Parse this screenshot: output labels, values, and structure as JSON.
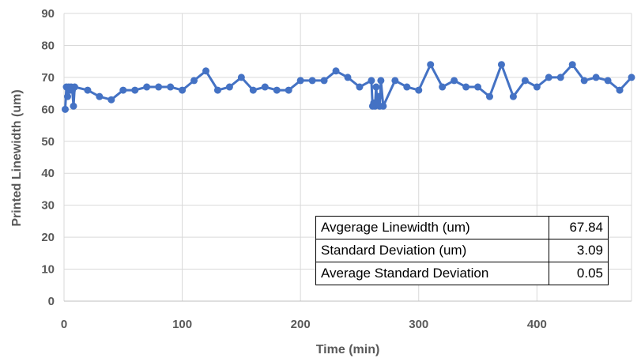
{
  "chart_data": {
    "type": "line",
    "title": "",
    "xlabel": "Time (min)",
    "ylabel": "Printed Linewidth (um)",
    "xlim": [
      0,
      480
    ],
    "ylim": [
      0,
      90
    ],
    "xticks": [
      0,
      100,
      200,
      300,
      400
    ],
    "yticks": [
      0,
      10,
      20,
      30,
      40,
      50,
      60,
      70,
      80,
      90
    ],
    "grid": true,
    "line_color": "#4472c4",
    "series": [
      {
        "name": "",
        "points": [
          [
            1,
            60
          ],
          [
            2,
            67
          ],
          [
            3,
            64
          ],
          [
            4,
            67
          ],
          [
            5,
            66
          ],
          [
            6,
            67
          ],
          [
            7,
            66
          ],
          [
            8,
            61
          ],
          [
            9,
            67
          ],
          [
            20,
            66
          ],
          [
            30,
            64
          ],
          [
            40,
            63
          ],
          [
            50,
            66
          ],
          [
            60,
            66
          ],
          [
            70,
            67
          ],
          [
            80,
            67
          ],
          [
            90,
            67
          ],
          [
            100,
            66
          ],
          [
            110,
            69
          ],
          [
            120,
            72
          ],
          [
            130,
            66
          ],
          [
            140,
            67
          ],
          [
            150,
            70
          ],
          [
            160,
            66
          ],
          [
            170,
            67
          ],
          [
            180,
            66
          ],
          [
            190,
            66
          ],
          [
            200,
            69
          ],
          [
            210,
            69
          ],
          [
            220,
            69
          ],
          [
            230,
            72
          ],
          [
            240,
            70
          ],
          [
            250,
            67
          ],
          [
            260,
            69
          ],
          [
            261,
            61
          ],
          [
            262,
            62
          ],
          [
            263,
            61
          ],
          [
            264,
            67
          ],
          [
            265,
            62
          ],
          [
            266,
            64
          ],
          [
            267,
            61
          ],
          [
            268,
            69
          ],
          [
            270,
            61
          ],
          [
            280,
            69
          ],
          [
            290,
            67
          ],
          [
            300,
            66
          ],
          [
            310,
            74
          ],
          [
            320,
            67
          ],
          [
            330,
            69
          ],
          [
            340,
            67
          ],
          [
            350,
            67
          ],
          [
            360,
            64
          ],
          [
            370,
            74
          ],
          [
            380,
            64
          ],
          [
            390,
            69
          ],
          [
            400,
            67
          ],
          [
            410,
            70
          ],
          [
            420,
            70
          ],
          [
            430,
            74
          ],
          [
            440,
            69
          ],
          [
            450,
            70
          ],
          [
            460,
            69
          ],
          [
            470,
            66
          ],
          [
            480,
            70
          ]
        ]
      }
    ],
    "stats_table": [
      {
        "label": "Avgerage Linewidth (um)",
        "value": "67.84"
      },
      {
        "label": "Standard Deviation (um)",
        "value": "3.09"
      },
      {
        "label": "Average Standard Deviation",
        "value": "0.05"
      }
    ]
  }
}
